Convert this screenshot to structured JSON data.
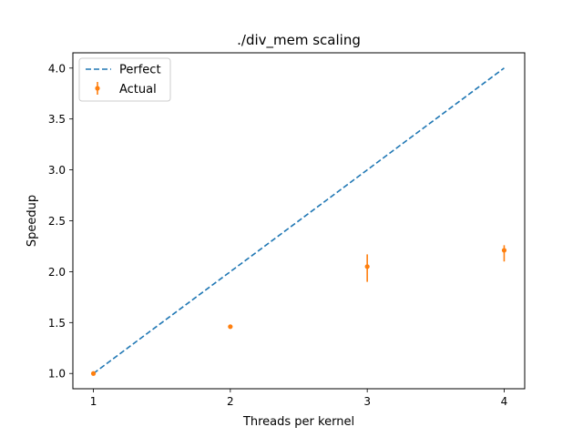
{
  "chart_data": {
    "type": "line",
    "title": "./div_mem scaling",
    "xlabel": "Threads per kernel",
    "ylabel": "Speedup",
    "xlim": [
      0.85,
      4.15
    ],
    "ylim": [
      0.85,
      4.15
    ],
    "xticks": [
      1,
      2,
      3,
      4
    ],
    "xtick_labels": [
      "1",
      "2",
      "3",
      "4"
    ],
    "yticks": [
      1.0,
      1.5,
      2.0,
      2.5,
      3.0,
      3.5,
      4.0
    ],
    "ytick_labels": [
      "1.0",
      "1.5",
      "2.0",
      "2.5",
      "3.0",
      "3.5",
      "4.0"
    ],
    "grid": false,
    "legend": "upper-left",
    "series": [
      {
        "name": "Perfect",
        "style": "dashed-line",
        "color": "#1f77b4",
        "x": [
          1,
          2,
          3,
          4
        ],
        "y": [
          1.0,
          2.0,
          3.0,
          4.0
        ]
      },
      {
        "name": "Actual",
        "style": "errorbar-points",
        "color": "#ff7f0e",
        "x": [
          1,
          2,
          3,
          4
        ],
        "y": [
          1.0,
          1.46,
          2.05,
          2.21
        ],
        "yerr_low": [
          0.0,
          0.0,
          0.15,
          0.11
        ],
        "yerr_high": [
          0.0,
          0.0,
          0.12,
          0.05
        ]
      }
    ]
  }
}
